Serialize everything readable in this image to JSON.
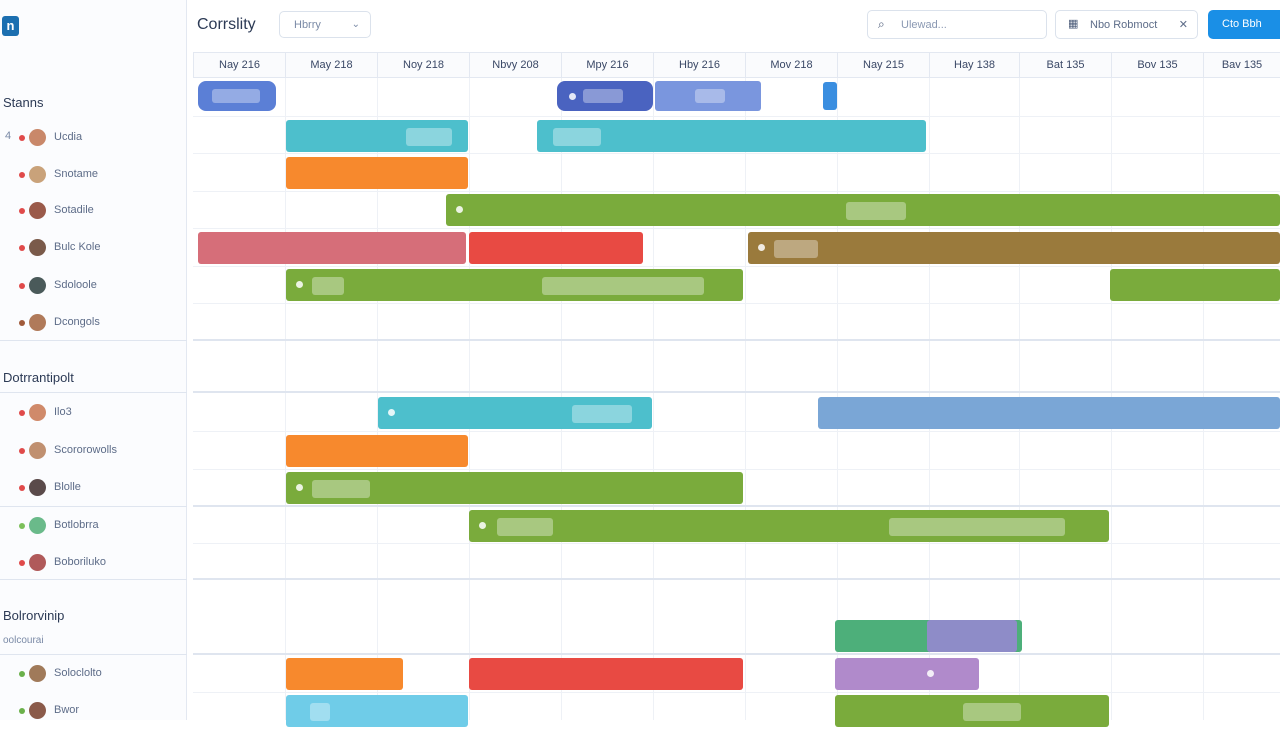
{
  "app": {
    "logo_letter": "n",
    "title": "Corrslity"
  },
  "toolbar": {
    "view_select": "Hbrry",
    "search_placeholder": "Ulewad...",
    "resource_button": "Nbo Robmoct",
    "primary_button": "Cto Bbh"
  },
  "timeline": {
    "dates": [
      "Nay 216",
      "May 218",
      "Noy 218",
      "Nbvy 208",
      "Mpy 216",
      "Hby 216",
      "Mov 218",
      "Nay 215",
      "Hay 138",
      "Bat 135",
      "Bov 135",
      "Bav 135"
    ]
  },
  "groups": [
    {
      "title": "Stanns",
      "people": [
        {
          "num": "4",
          "name": "Ucdia",
          "dot_color": "#e04a4a",
          "avatar_color": "#c9886a"
        },
        {
          "num": "",
          "name": "Snotame",
          "dot_color": "#e04a4a",
          "avatar_color": "#c9a27a"
        },
        {
          "num": "",
          "name": "Sotadile",
          "dot_color": "#e04a4a",
          "avatar_color": "#9a5a4a"
        },
        {
          "num": "",
          "name": "Bulc Kole",
          "dot_color": "#e04a4a",
          "avatar_color": "#7a5a4a"
        },
        {
          "num": "",
          "name": "Sdoloole",
          "dot_color": "#e04a4a",
          "avatar_color": "#4a5a5a"
        },
        {
          "num": "",
          "name": "Dcongols",
          "dot_color": "#a05a3a",
          "avatar_color": "#b07a5a"
        }
      ]
    },
    {
      "title": "Dotrrantipolt",
      "people": [
        {
          "num": "",
          "name": "Ilo3",
          "dot_color": "#e04a4a",
          "avatar_color": "#d08a6a"
        },
        {
          "num": "",
          "name": "Scororowolls",
          "dot_color": "#e04a4a",
          "avatar_color": "#c09070"
        },
        {
          "num": "",
          "name": "Blolle",
          "dot_color": "#e04a4a",
          "avatar_color": "#5a4a4a"
        },
        {
          "num": "",
          "name": "Botlobrra",
          "dot_color": "#7cc05a",
          "avatar_color": "#6aba8a"
        },
        {
          "num": "",
          "name": "Boboriluko",
          "dot_color": "#e04a4a",
          "avatar_color": "#b05a5a"
        }
      ]
    },
    {
      "title": "Bolrorvinip",
      "subtitle": "oolcourai",
      "people": [
        {
          "num": "",
          "name": "Soloclolto",
          "dot_color": "#6ab04a",
          "avatar_color": "#a07a5a"
        },
        {
          "num": "",
          "name": "Bwor",
          "dot_color": "#6ab04a",
          "avatar_color": "#8a5a4a"
        }
      ]
    }
  ],
  "colors": {
    "blue": "#5b7fd6",
    "teal": "#4dbfcc",
    "orange": "#f7892d",
    "green": "#7aab3c",
    "red": "#e84a43",
    "rose": "#d66e79",
    "steel": "#7aa6d6",
    "emerald": "#4daf7a",
    "violet": "#9a86d6",
    "mauve": "#b08acb",
    "sky": "#6fcce8",
    "primary": "#1a8fe6"
  }
}
